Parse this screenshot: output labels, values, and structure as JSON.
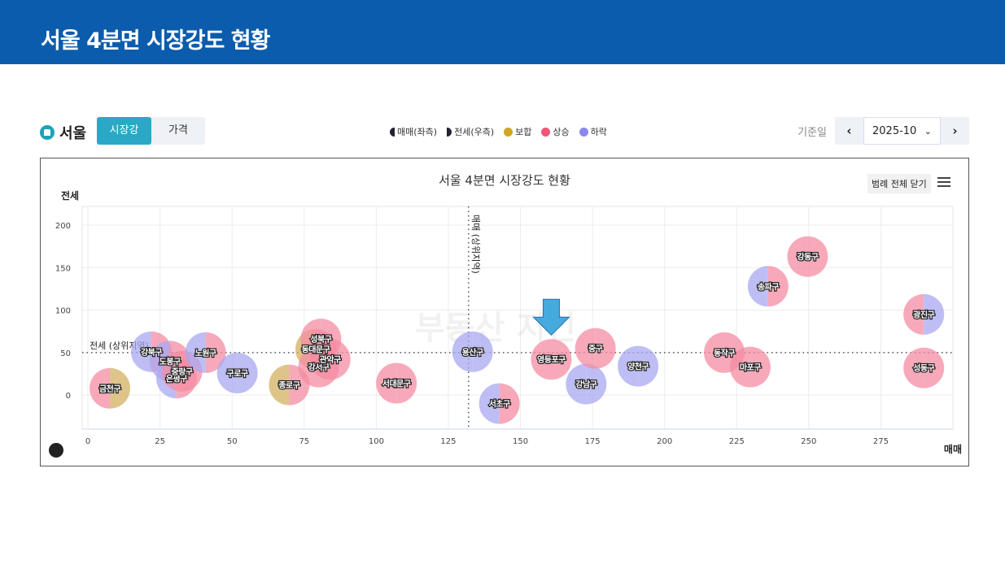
{
  "header": {
    "title": "서울 4분면 시장강도 현황"
  },
  "toolbar": {
    "region": "서울",
    "tabs": [
      {
        "label": "시장강도",
        "active": true
      },
      {
        "label": "가격",
        "active": false
      }
    ],
    "legend": [
      {
        "label": "매매(좌측)",
        "icon": "left-half-circle"
      },
      {
        "label": "전세(우측)",
        "icon": "right-half-circle"
      },
      {
        "label": "보합",
        "color": "#D0A624"
      },
      {
        "label": "상승",
        "color": "#F0557A"
      },
      {
        "label": "하락",
        "color": "#8888EE"
      }
    ],
    "date_label": "기준일",
    "date_value": "2025-10",
    "prev_icon": "chevron-left-icon",
    "next_icon": "chevron-right-icon"
  },
  "chart_controls": {
    "legend_close": "범례 전체 닫기",
    "menu_icon": "hamburger-icon"
  },
  "colors": {
    "보합": "#D4B062",
    "상승": "#F48CA3",
    "하락": "#A8A8F2"
  },
  "chart_data": {
    "type": "bubble",
    "title": "서울 4분면 시장강도 현황",
    "xlabel": "매매",
    "ylabel": "전세",
    "xlim": [
      -2,
      300
    ],
    "ylim": [
      -40,
      222
    ],
    "xticks": [
      0,
      25,
      50,
      75,
      100,
      125,
      150,
      175,
      200,
      225,
      250,
      275
    ],
    "yticks": [
      0,
      50,
      100,
      150,
      200
    ],
    "grid": true,
    "reference_lines": {
      "vertical": {
        "x": 132,
        "label": "매매 (상위지역)"
      },
      "horizontal": {
        "y": 50,
        "label": "전세 (상위지역)"
      }
    },
    "points": [
      {
        "name": "금천구",
        "x": 7.6,
        "y": 8,
        "sale": "상승",
        "jeonse": "보합"
      },
      {
        "name": "강북구",
        "x": 22,
        "y": 51,
        "sale": "하락",
        "jeonse": "상승"
      },
      {
        "name": "도봉구",
        "x": 28.4,
        "y": 40,
        "sale": "하락",
        "jeonse": "상승"
      },
      {
        "name": "은평구",
        "x": 30.7,
        "y": 20,
        "sale": "하락",
        "jeonse": "상승"
      },
      {
        "name": "중랑구",
        "x": 32.6,
        "y": 28,
        "sale": "상승",
        "jeonse": "상승"
      },
      {
        "name": "노원구",
        "x": 40.8,
        "y": 50,
        "sale": "하락",
        "jeonse": "상승"
      },
      {
        "name": "구로구",
        "x": 51.8,
        "y": 26,
        "sale": "하락",
        "jeonse": "하락"
      },
      {
        "name": "종로구",
        "x": 69.8,
        "y": 12,
        "sale": "보합",
        "jeonse": "상승"
      },
      {
        "name": "동대문구",
        "x": 79,
        "y": 54,
        "sale": "보합",
        "jeonse": "상승"
      },
      {
        "name": "강서구",
        "x": 80,
        "y": 33,
        "sale": "상승",
        "jeonse": "상승"
      },
      {
        "name": "성북구",
        "x": 80.8,
        "y": 66,
        "sale": "상승",
        "jeonse": "상승"
      },
      {
        "name": "관악구",
        "x": 84,
        "y": 42,
        "sale": "상승",
        "jeonse": "상승"
      },
      {
        "name": "서대문구",
        "x": 107,
        "y": 14,
        "sale": "상승",
        "jeonse": "상승"
      },
      {
        "name": "용산구",
        "x": 133.4,
        "y": 51,
        "sale": "하락",
        "jeonse": "하락"
      },
      {
        "name": "서초구",
        "x": 142.7,
        "y": -10,
        "sale": "하락",
        "jeonse": "상승"
      },
      {
        "name": "영등포구",
        "x": 160.7,
        "y": 42,
        "sale": "상승",
        "jeonse": "상승"
      },
      {
        "name": "강남구",
        "x": 172.8,
        "y": 13,
        "sale": "하락",
        "jeonse": "하락"
      },
      {
        "name": "중구",
        "x": 176,
        "y": 55,
        "sale": "상승",
        "jeonse": "상승"
      },
      {
        "name": "양천구",
        "x": 190.8,
        "y": 34,
        "sale": "하락",
        "jeonse": "하락"
      },
      {
        "name": "동작구",
        "x": 220.7,
        "y": 50,
        "sale": "상승",
        "jeonse": "상승"
      },
      {
        "name": "마포구",
        "x": 229.7,
        "y": 33,
        "sale": "상승",
        "jeonse": "상승"
      },
      {
        "name": "송파구",
        "x": 235.9,
        "y": 128,
        "sale": "하락",
        "jeonse": "상승"
      },
      {
        "name": "강동구",
        "x": 249.6,
        "y": 163,
        "sale": "상승",
        "jeonse": "상승"
      },
      {
        "name": "광진구",
        "x": 289.9,
        "y": 95,
        "sale": "상승",
        "jeonse": "하락"
      },
      {
        "name": "성동구",
        "x": 289.9,
        "y": 32,
        "sale": "상승",
        "jeonse": "상승"
      }
    ],
    "highlight": "영등포구"
  }
}
